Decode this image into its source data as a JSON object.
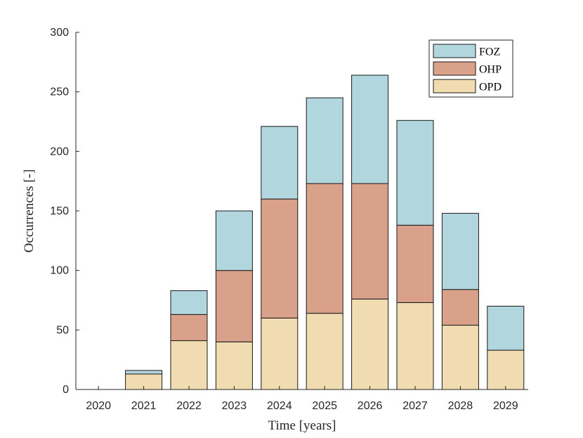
{
  "chart_data": {
    "type": "bar",
    "stacked": true,
    "categories": [
      "2020",
      "2021",
      "2022",
      "2023",
      "2024",
      "2025",
      "2026",
      "2027",
      "2028",
      "2029"
    ],
    "series": [
      {
        "name": "OPD",
        "color": "#f0dcb0",
        "values": [
          0,
          13,
          41,
          40,
          60,
          64,
          76,
          73,
          54,
          33
        ]
      },
      {
        "name": "OHP",
        "color": "#d9a08a",
        "values": [
          0,
          0,
          22,
          60,
          100,
          109,
          97,
          65,
          30,
          0
        ]
      },
      {
        "name": "FOZ",
        "color": "#b2d6de",
        "values": [
          0,
          3,
          20,
          50,
          61,
          72,
          91,
          88,
          64,
          37
        ]
      }
    ],
    "legend_order": [
      "FOZ",
      "OHP",
      "OPD"
    ],
    "title": "",
    "xlabel": "Time [years]",
    "ylabel": "Occurrences [-]",
    "ylim": [
      0,
      300
    ],
    "yticks": [
      "0",
      "50",
      "100",
      "150",
      "200",
      "250",
      "300"
    ],
    "legend_position": "top-right",
    "grid": false
  }
}
